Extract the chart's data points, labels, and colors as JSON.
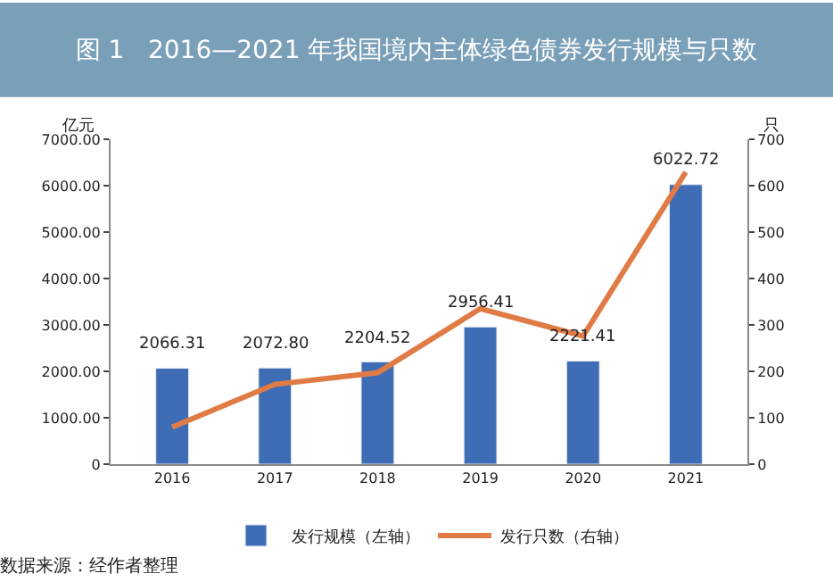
{
  "chart_data": {
    "type": "bar",
    "title": "图 1   2016—2021 年我国境内主体绿色债券发行规模与只数",
    "ylabel": "亿元",
    "y2label": "只",
    "categories": [
      "2016",
      "2017",
      "2018",
      "2019",
      "2020",
      "2021"
    ],
    "series": [
      {
        "name": "发行规模（左轴）",
        "color": "#3f6db5",
        "values": [
          2066.31,
          2072.8,
          2204.52,
          2956.41,
          2221.41,
          6022.72
        ],
        "value_labels": [
          "2066.31",
          "2072.80",
          "2204.52",
          "2956.41",
          "2221.41",
          "6022.72"
        ]
      },
      {
        "name": "发行只数（右轴）",
        "type": "line",
        "axis": "y2",
        "color": "#e07b45",
        "values": [
          80,
          172,
          197,
          335,
          276,
          629
        ]
      }
    ],
    "ylim": [
      0,
      7000
    ],
    "yticks": [
      0,
      {
        "value": 1000,
        "label": "1000.00"
      },
      {
        "value": 2000,
        "label": "2000.00"
      },
      {
        "value": 3000,
        "label": "3000.00"
      },
      {
        "value": 4000,
        "label": "4000.00"
      },
      {
        "value": 5000,
        "label": "5000.00"
      },
      {
        "value": 6000,
        "label": "6000.00"
      },
      {
        "value": 7000,
        "label": "7000.00"
      }
    ],
    "y2lim": [
      0,
      700
    ],
    "y2ticks": [
      0,
      100,
      200,
      300,
      400,
      500,
      600,
      700
    ],
    "legend": "bottom",
    "marker": "none",
    "line_style": "solid",
    "annotations": [
      "数据来源：经作者整理"
    ]
  }
}
